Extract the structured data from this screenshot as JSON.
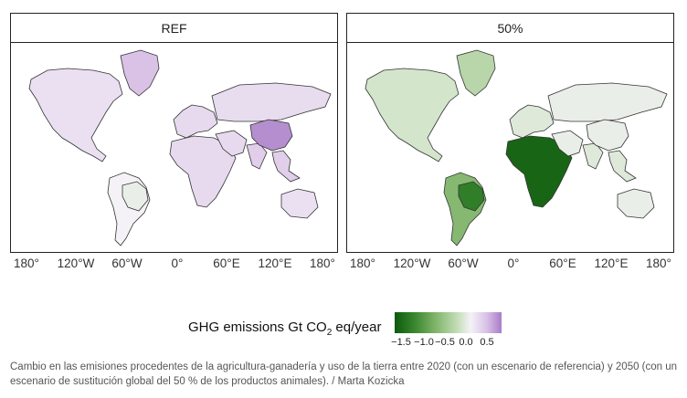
{
  "panels": [
    {
      "label": "REF"
    },
    {
      "label": "50%"
    }
  ],
  "xticks": [
    "180°",
    "120°W",
    "60°W",
    "0°",
    "60°E",
    "120°E",
    "180°"
  ],
  "legend": {
    "title_main": "GHG emissions Gt CO",
    "title_sub": "2",
    "title_end": " eq/year",
    "ticks": [
      "−1.5",
      "−1.0",
      "−0.5",
      "0.0",
      "0.5"
    ],
    "range": [
      -1.7,
      0.7
    ],
    "colors": [
      "#0b5a0b",
      "#3e8a32",
      "#86b871",
      "#c8e0bc",
      "#f5f2f7",
      "#d9c2e6",
      "#a97cc8"
    ]
  },
  "caption": "Cambio en las emisiones procedentes de la agricultura-ganadería y uso de la tierra entre 2020 (con un escenario de referencia) y 2050 (con un escenario de sustitución global del 50 % de los productos animales). / Marta Kozicka",
  "map_data": {
    "REF": {
      "north-america": 0.05,
      "greenland": 0.3,
      "south-america": -0.1,
      "brazil": -0.2,
      "europe": 0.1,
      "russia": 0.08,
      "africa": 0.1,
      "middle-east": 0.1,
      "india": 0.2,
      "china": 0.6,
      "southeast-asia": 0.2,
      "australia": 0.05
    },
    "50%": {
      "north-america": -0.4,
      "greenland": -0.6,
      "south-america": -0.9,
      "brazil": -1.4,
      "europe": -0.3,
      "russia": -0.2,
      "africa": -1.6,
      "middle-east": -0.2,
      "india": -0.3,
      "china": -0.2,
      "southeast-asia": -0.3,
      "australia": -0.2
    }
  }
}
